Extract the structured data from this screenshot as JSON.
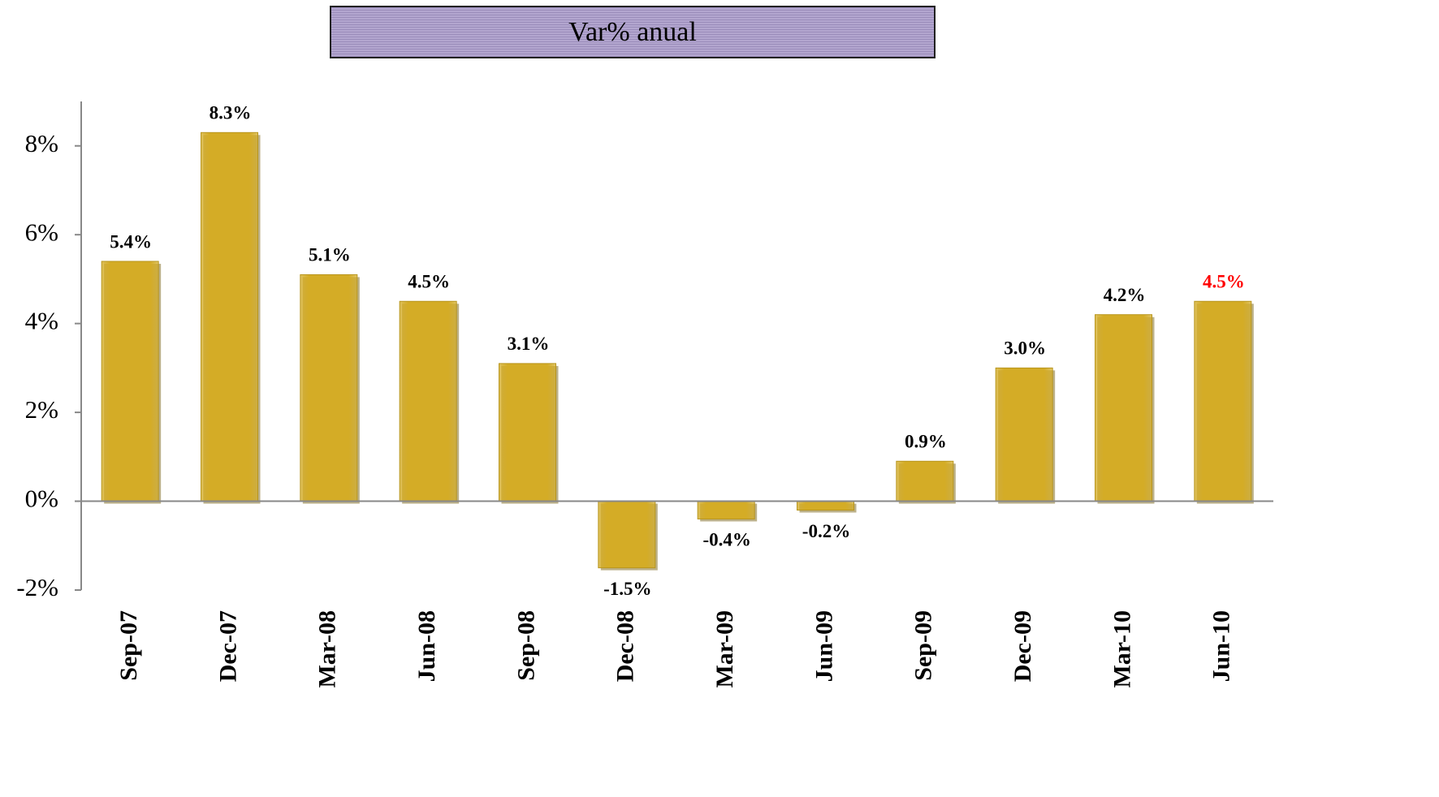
{
  "chart_data": {
    "type": "bar",
    "title": "Var% anual",
    "categories": [
      "Sep-07",
      "Dec-07",
      "Mar-08",
      "Jun-08",
      "Sep-08",
      "Dec-08",
      "Mar-09",
      "Jun-09",
      "Sep-09",
      "Dec-09",
      "Mar-10",
      "Jun-10"
    ],
    "values": [
      5.4,
      8.3,
      5.1,
      4.5,
      3.1,
      -1.5,
      -0.4,
      -0.2,
      0.9,
      3.0,
      4.2,
      4.5
    ],
    "value_labels": [
      "5.4%",
      "8.3%",
      "5.1%",
      "4.5%",
      "3.1%",
      "-1.5%",
      "-0.4%",
      "-0.2%",
      "0.9%",
      "3.0%",
      "4.2%",
      "4.5%"
    ],
    "value_label_colors": [
      "#000000",
      "#000000",
      "#000000",
      "#000000",
      "#000000",
      "#000000",
      "#000000",
      "#000000",
      "#000000",
      "#000000",
      "#000000",
      "#ff0000"
    ],
    "color": "#d4ac26",
    "ylim": [
      -2,
      9
    ],
    "yticks": [
      {
        "value": -2,
        "label": "-2%"
      },
      {
        "value": 0,
        "label": "0%"
      },
      {
        "value": 2,
        "label": "2%"
      },
      {
        "value": 4,
        "label": "4%"
      },
      {
        "value": 6,
        "label": "6%"
      },
      {
        "value": 8,
        "label": "8%"
      }
    ]
  }
}
